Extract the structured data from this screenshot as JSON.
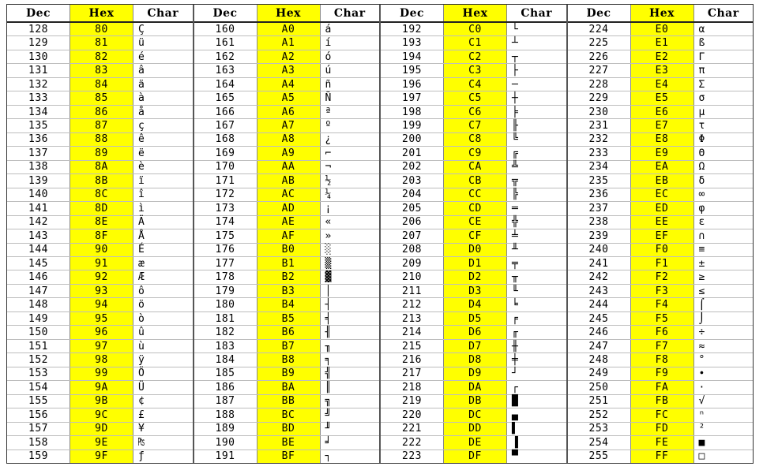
{
  "headers": {
    "dec": "Dec",
    "hex": "Hex",
    "char": "Char"
  },
  "blocks": [
    {
      "rows": [
        {
          "dec": "128",
          "hex": "80",
          "ch": "Ç"
        },
        {
          "dec": "129",
          "hex": "81",
          "ch": "ü"
        },
        {
          "dec": "130",
          "hex": "82",
          "ch": "é"
        },
        {
          "dec": "131",
          "hex": "83",
          "ch": "â"
        },
        {
          "dec": "132",
          "hex": "84",
          "ch": "ä"
        },
        {
          "dec": "133",
          "hex": "85",
          "ch": "à"
        },
        {
          "dec": "134",
          "hex": "86",
          "ch": "å"
        },
        {
          "dec": "135",
          "hex": "87",
          "ch": "ç"
        },
        {
          "dec": "136",
          "hex": "88",
          "ch": "ê"
        },
        {
          "dec": "137",
          "hex": "89",
          "ch": "ë"
        },
        {
          "dec": "138",
          "hex": "8A",
          "ch": "è"
        },
        {
          "dec": "139",
          "hex": "8B",
          "ch": "ï"
        },
        {
          "dec": "140",
          "hex": "8C",
          "ch": "î"
        },
        {
          "dec": "141",
          "hex": "8D",
          "ch": "ì"
        },
        {
          "dec": "142",
          "hex": "8E",
          "ch": "Ä"
        },
        {
          "dec": "143",
          "hex": "8F",
          "ch": "Å"
        },
        {
          "dec": "144",
          "hex": "90",
          "ch": "É"
        },
        {
          "dec": "145",
          "hex": "91",
          "ch": "æ"
        },
        {
          "dec": "146",
          "hex": "92",
          "ch": "Æ"
        },
        {
          "dec": "147",
          "hex": "93",
          "ch": "ô"
        },
        {
          "dec": "148",
          "hex": "94",
          "ch": "ö"
        },
        {
          "dec": "149",
          "hex": "95",
          "ch": "ò"
        },
        {
          "dec": "150",
          "hex": "96",
          "ch": "û"
        },
        {
          "dec": "151",
          "hex": "97",
          "ch": "ù"
        },
        {
          "dec": "152",
          "hex": "98",
          "ch": "ÿ"
        },
        {
          "dec": "153",
          "hex": "99",
          "ch": "Ö"
        },
        {
          "dec": "154",
          "hex": "9A",
          "ch": "Ü"
        },
        {
          "dec": "155",
          "hex": "9B",
          "ch": "¢"
        },
        {
          "dec": "156",
          "hex": "9C",
          "ch": "£"
        },
        {
          "dec": "157",
          "hex": "9D",
          "ch": "¥"
        },
        {
          "dec": "158",
          "hex": "9E",
          "ch": "₧"
        },
        {
          "dec": "159",
          "hex": "9F",
          "ch": "ƒ"
        }
      ]
    },
    {
      "rows": [
        {
          "dec": "160",
          "hex": "A0",
          "ch": "á"
        },
        {
          "dec": "161",
          "hex": "A1",
          "ch": "í"
        },
        {
          "dec": "162",
          "hex": "A2",
          "ch": "ó"
        },
        {
          "dec": "163",
          "hex": "A3",
          "ch": "ú"
        },
        {
          "dec": "164",
          "hex": "A4",
          "ch": "ñ"
        },
        {
          "dec": "165",
          "hex": "A5",
          "ch": "Ñ"
        },
        {
          "dec": "166",
          "hex": "A6",
          "ch": "ª"
        },
        {
          "dec": "167",
          "hex": "A7",
          "ch": "º"
        },
        {
          "dec": "168",
          "hex": "A8",
          "ch": "¿"
        },
        {
          "dec": "169",
          "hex": "A9",
          "ch": "⌐"
        },
        {
          "dec": "170",
          "hex": "AA",
          "ch": "¬"
        },
        {
          "dec": "171",
          "hex": "AB",
          "ch": "½"
        },
        {
          "dec": "172",
          "hex": "AC",
          "ch": "¼"
        },
        {
          "dec": "173",
          "hex": "AD",
          "ch": "¡"
        },
        {
          "dec": "174",
          "hex": "AE",
          "ch": "«"
        },
        {
          "dec": "175",
          "hex": "AF",
          "ch": "»"
        },
        {
          "dec": "176",
          "hex": "B0",
          "ch": "░"
        },
        {
          "dec": "177",
          "hex": "B1",
          "ch": "▒"
        },
        {
          "dec": "178",
          "hex": "B2",
          "ch": "▓"
        },
        {
          "dec": "179",
          "hex": "B3",
          "ch": "│"
        },
        {
          "dec": "180",
          "hex": "B4",
          "ch": "┤"
        },
        {
          "dec": "181",
          "hex": "B5",
          "ch": "╡"
        },
        {
          "dec": "182",
          "hex": "B6",
          "ch": "╢"
        },
        {
          "dec": "183",
          "hex": "B7",
          "ch": "╖"
        },
        {
          "dec": "184",
          "hex": "B8",
          "ch": "╕"
        },
        {
          "dec": "185",
          "hex": "B9",
          "ch": "╣"
        },
        {
          "dec": "186",
          "hex": "BA",
          "ch": "║"
        },
        {
          "dec": "187",
          "hex": "BB",
          "ch": "╗"
        },
        {
          "dec": "188",
          "hex": "BC",
          "ch": "╝"
        },
        {
          "dec": "189",
          "hex": "BD",
          "ch": "╜"
        },
        {
          "dec": "190",
          "hex": "BE",
          "ch": "╛"
        },
        {
          "dec": "191",
          "hex": "BF",
          "ch": "┐"
        }
      ]
    },
    {
      "rows": [
        {
          "dec": "192",
          "hex": "C0",
          "ch": "└"
        },
        {
          "dec": "193",
          "hex": "C1",
          "ch": "┴"
        },
        {
          "dec": "194",
          "hex": "C2",
          "ch": "┬"
        },
        {
          "dec": "195",
          "hex": "C3",
          "ch": "├"
        },
        {
          "dec": "196",
          "hex": "C4",
          "ch": "─"
        },
        {
          "dec": "197",
          "hex": "C5",
          "ch": "┼"
        },
        {
          "dec": "198",
          "hex": "C6",
          "ch": "╞"
        },
        {
          "dec": "199",
          "hex": "C7",
          "ch": "╟"
        },
        {
          "dec": "200",
          "hex": "C8",
          "ch": "╚"
        },
        {
          "dec": "201",
          "hex": "C9",
          "ch": "╔"
        },
        {
          "dec": "202",
          "hex": "CA",
          "ch": "╩"
        },
        {
          "dec": "203",
          "hex": "CB",
          "ch": "╦"
        },
        {
          "dec": "204",
          "hex": "CC",
          "ch": "╠"
        },
        {
          "dec": "205",
          "hex": "CD",
          "ch": "═"
        },
        {
          "dec": "206",
          "hex": "CE",
          "ch": "╬"
        },
        {
          "dec": "207",
          "hex": "CF",
          "ch": "╧"
        },
        {
          "dec": "208",
          "hex": "D0",
          "ch": "╨"
        },
        {
          "dec": "209",
          "hex": "D1",
          "ch": "╤"
        },
        {
          "dec": "210",
          "hex": "D2",
          "ch": "╥"
        },
        {
          "dec": "211",
          "hex": "D3",
          "ch": "╙"
        },
        {
          "dec": "212",
          "hex": "D4",
          "ch": "╘"
        },
        {
          "dec": "213",
          "hex": "D5",
          "ch": "╒"
        },
        {
          "dec": "214",
          "hex": "D6",
          "ch": "╓"
        },
        {
          "dec": "215",
          "hex": "D7",
          "ch": "╫"
        },
        {
          "dec": "216",
          "hex": "D8",
          "ch": "╪"
        },
        {
          "dec": "217",
          "hex": "D9",
          "ch": "┘"
        },
        {
          "dec": "218",
          "hex": "DA",
          "ch": "┌"
        },
        {
          "dec": "219",
          "hex": "DB",
          "ch": "█"
        },
        {
          "dec": "220",
          "hex": "DC",
          "ch": "▄"
        },
        {
          "dec": "221",
          "hex": "DD",
          "ch": "▌"
        },
        {
          "dec": "222",
          "hex": "DE",
          "ch": "▐"
        },
        {
          "dec": "223",
          "hex": "DF",
          "ch": "▀"
        }
      ]
    },
    {
      "rows": [
        {
          "dec": "224",
          "hex": "E0",
          "ch": "α"
        },
        {
          "dec": "225",
          "hex": "E1",
          "ch": "ß"
        },
        {
          "dec": "226",
          "hex": "E2",
          "ch": "Γ"
        },
        {
          "dec": "227",
          "hex": "E3",
          "ch": "π"
        },
        {
          "dec": "228",
          "hex": "E4",
          "ch": "Σ"
        },
        {
          "dec": "229",
          "hex": "E5",
          "ch": "σ"
        },
        {
          "dec": "230",
          "hex": "E6",
          "ch": "µ"
        },
        {
          "dec": "231",
          "hex": "E7",
          "ch": "τ"
        },
        {
          "dec": "232",
          "hex": "E8",
          "ch": "Φ"
        },
        {
          "dec": "233",
          "hex": "E9",
          "ch": "Θ"
        },
        {
          "dec": "234",
          "hex": "EA",
          "ch": "Ω"
        },
        {
          "dec": "235",
          "hex": "EB",
          "ch": "δ"
        },
        {
          "dec": "236",
          "hex": "EC",
          "ch": "∞"
        },
        {
          "dec": "237",
          "hex": "ED",
          "ch": "φ"
        },
        {
          "dec": "238",
          "hex": "EE",
          "ch": "ε"
        },
        {
          "dec": "239",
          "hex": "EF",
          "ch": "∩"
        },
        {
          "dec": "240",
          "hex": "F0",
          "ch": "≡"
        },
        {
          "dec": "241",
          "hex": "F1",
          "ch": "±"
        },
        {
          "dec": "242",
          "hex": "F2",
          "ch": "≥"
        },
        {
          "dec": "243",
          "hex": "F3",
          "ch": "≤"
        },
        {
          "dec": "244",
          "hex": "F4",
          "ch": "⌠"
        },
        {
          "dec": "245",
          "hex": "F5",
          "ch": "⌡"
        },
        {
          "dec": "246",
          "hex": "F6",
          "ch": "÷"
        },
        {
          "dec": "247",
          "hex": "F7",
          "ch": "≈"
        },
        {
          "dec": "248",
          "hex": "F8",
          "ch": "°"
        },
        {
          "dec": "249",
          "hex": "F9",
          "ch": "∙"
        },
        {
          "dec": "250",
          "hex": "FA",
          "ch": "·"
        },
        {
          "dec": "251",
          "hex": "FB",
          "ch": "√"
        },
        {
          "dec": "252",
          "hex": "FC",
          "ch": "ⁿ"
        },
        {
          "dec": "253",
          "hex": "FD",
          "ch": "²"
        },
        {
          "dec": "254",
          "hex": "FE",
          "ch": "■"
        },
        {
          "dec": "255",
          "hex": "FF",
          "ch": "□"
        }
      ]
    }
  ]
}
